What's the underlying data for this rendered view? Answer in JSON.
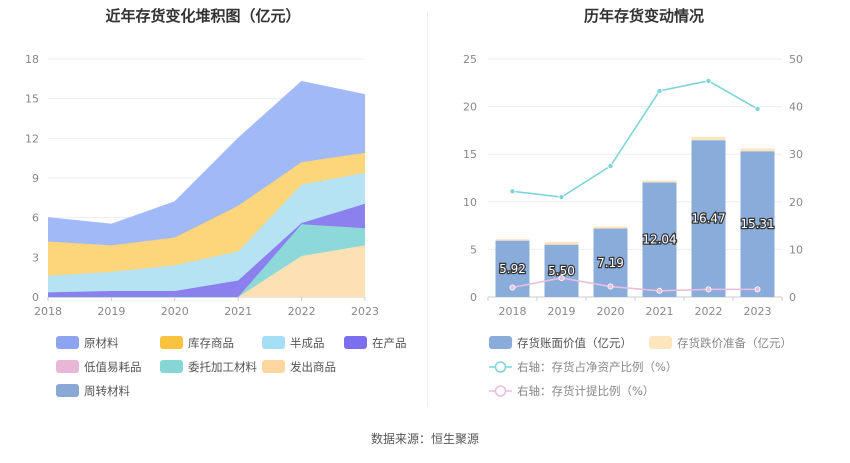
{
  "source_text": "数据来源：恒生聚源",
  "chart_data": [
    {
      "type": "area",
      "title": "近年存货变化堆积图（亿元）",
      "categories": [
        "2018",
        "2019",
        "2020",
        "2021",
        "2022",
        "2023"
      ],
      "ylim": [
        0,
        18
      ],
      "yticks": [
        "0",
        "3",
        "6",
        "9",
        "12",
        "15",
        "18"
      ],
      "series": [
        {
          "name": "发出商品",
          "color": "#fde0b3",
          "values": [
            0,
            0,
            0,
            0,
            3.1,
            3.9
          ]
        },
        {
          "name": "委托加工材料",
          "color": "#8dd8d8",
          "values": [
            0,
            0,
            0,
            0,
            2.4,
            1.3
          ]
        },
        {
          "name": "在产品",
          "color": "#8c80ee",
          "values": [
            0.35,
            0.45,
            0.45,
            1.25,
            0.1,
            1.85
          ]
        },
        {
          "name": "半成品",
          "color": "#b5e3f4",
          "values": [
            1.25,
            1.45,
            1.95,
            2.2,
            2.9,
            2.35
          ]
        },
        {
          "name": "库存商品",
          "color": "#fdd57a",
          "values": [
            2.6,
            2.0,
            2.1,
            3.45,
            1.7,
            1.5
          ]
        },
        {
          "name": "原材料",
          "color": "#a2b9f7",
          "values": [
            1.8,
            1.6,
            2.7,
            5.1,
            6.1,
            4.4
          ]
        }
      ],
      "legend": [
        {
          "name": "原材料",
          "color": "#8da4f2"
        },
        {
          "name": "库存商品",
          "color": "#f9c33f"
        },
        {
          "name": "半成品",
          "color": "#a5dff5"
        },
        {
          "name": "在产品",
          "color": "#7b6ff0"
        },
        {
          "name": "低值易耗品",
          "color": "#e8b6d6"
        },
        {
          "name": "委托加工材料",
          "color": "#86d6d6"
        },
        {
          "name": "发出商品",
          "color": "#fdd6a0"
        },
        {
          "name": "周转材料",
          "color": "#8aa8d6"
        }
      ]
    },
    {
      "type": "bar+line",
      "title": "历年存货变动情况",
      "categories": [
        "2018",
        "2019",
        "2020",
        "2021",
        "2022",
        "2023"
      ],
      "ylim": [
        0,
        25
      ],
      "yticks": [
        "0",
        "5",
        "10",
        "15",
        "20",
        "25"
      ],
      "y2lim": [
        0,
        50
      ],
      "y2ticks": [
        "0",
        "10",
        "20",
        "30",
        "40",
        "50"
      ],
      "bars": {
        "name": "存货账面价值（亿元）",
        "color": "#8aacdb",
        "values": [
          5.92,
          5.5,
          7.19,
          12.04,
          16.47,
          15.31
        ],
        "labels": [
          "5.92",
          "5.50",
          "7.19",
          "12.04",
          "16.47",
          "15.31"
        ]
      },
      "reserve": {
        "name": "存货跌价准备（亿元）",
        "color": "#fde5bd",
        "values": [
          0.15,
          0.3,
          0.2,
          0.2,
          0.35,
          0.3
        ]
      },
      "lines": [
        {
          "name": "右轴：存货占净资产比例（%）",
          "color": "#7fd4da",
          "values": [
            22.2,
            21.0,
            27.5,
            43.3,
            45.4,
            39.5
          ]
        },
        {
          "name": "右轴：存货计提比例（%）",
          "color": "#e8bedd",
          "values": [
            2.0,
            4.0,
            2.2,
            1.3,
            1.6,
            1.6
          ]
        }
      ]
    }
  ]
}
